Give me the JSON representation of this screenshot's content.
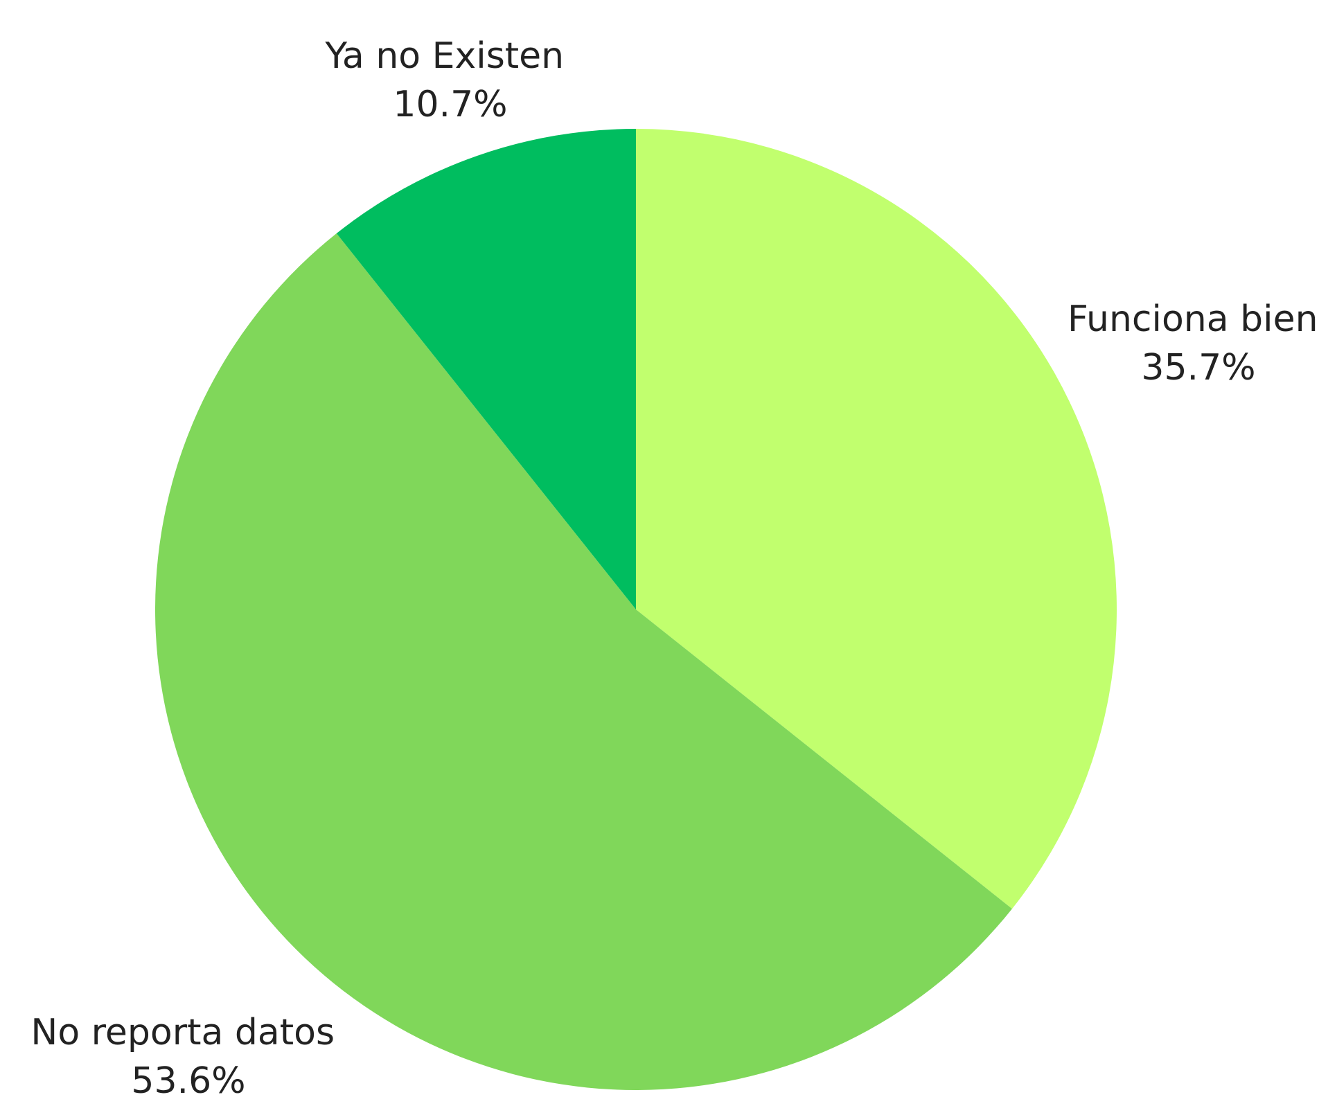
{
  "chart_data": {
    "type": "pie",
    "title": "",
    "start_angle_deg": 0,
    "direction": "clockwise",
    "slices": [
      {
        "label": "Funciona bien",
        "value": 35.7,
        "percent_label": "35.7%",
        "color": "#c1ff6e"
      },
      {
        "label": "No reporta datos",
        "value": 53.6,
        "percent_label": "53.6%",
        "color": "#80d75a"
      },
      {
        "label": "Ya no Existen",
        "value": 10.7,
        "percent_label": "10.7%",
        "color": "#00bd5f"
      }
    ]
  }
}
